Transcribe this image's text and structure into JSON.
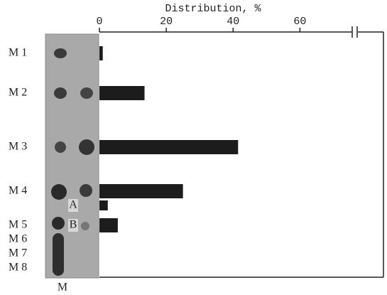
{
  "chart_data": {
    "type": "bar",
    "orientation": "horizontal",
    "x_label": "Distribution, %",
    "categories": [
      "M 1",
      "M 2",
      "M 3",
      "M 4",
      "M 5",
      "M 6",
      "M 7",
      "M 8"
    ],
    "values": [
      1,
      13.5,
      41.5,
      25,
      null,
      null,
      null,
      null
    ],
    "sub_spots": {
      "labels": [
        "A",
        "B"
      ],
      "values": [
        2.5,
        5.5
      ]
    },
    "lane_label": "M",
    "xlim": [
      0,
      85
    ],
    "xticks": [
      0,
      20,
      40,
      60
    ],
    "color": "#1c1c1c"
  }
}
